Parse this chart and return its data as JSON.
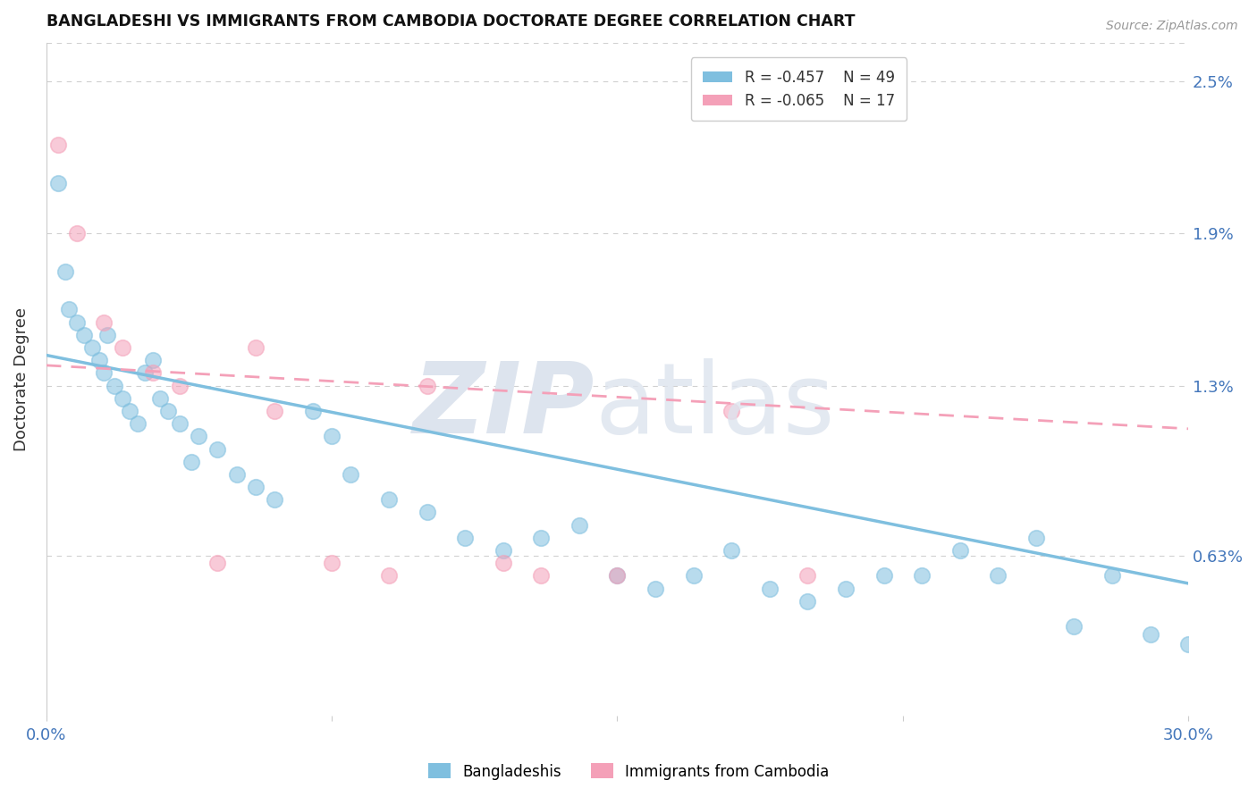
{
  "title": "BANGLADESHI VS IMMIGRANTS FROM CAMBODIA DOCTORATE DEGREE CORRELATION CHART",
  "source": "Source: ZipAtlas.com",
  "ylabel": "Doctorate Degree",
  "xmin": 0.0,
  "xmax": 30.0,
  "ymin": 0.0,
  "ymax": 2.65,
  "ytick_vals": [
    0.63,
    1.3,
    1.9,
    2.5
  ],
  "ytick_labels": [
    "0.63%",
    "1.3%",
    "1.9%",
    "2.5%"
  ],
  "xtick_vals": [
    0.0,
    7.5,
    15.0,
    22.5,
    30.0
  ],
  "xtick_labels": [
    "0.0%",
    "",
    "",
    "",
    "30.0%"
  ],
  "blue_R": "-0.457",
  "blue_N": "49",
  "pink_R": "-0.065",
  "pink_N": "17",
  "blue_color": "#7fbfdf",
  "pink_color": "#f4a0b8",
  "blue_scatter_x": [
    0.3,
    0.5,
    0.6,
    0.8,
    1.0,
    1.2,
    1.4,
    1.5,
    1.6,
    1.8,
    2.0,
    2.2,
    2.4,
    2.6,
    2.8,
    3.0,
    3.2,
    3.5,
    3.8,
    4.0,
    4.5,
    5.0,
    5.5,
    6.0,
    7.0,
    7.5,
    8.0,
    9.0,
    10.0,
    11.0,
    12.0,
    13.0,
    14.0,
    15.0,
    16.0,
    17.0,
    18.0,
    19.0,
    20.0,
    21.0,
    22.0,
    23.0,
    24.0,
    25.0,
    26.0,
    27.0,
    28.0,
    29.0,
    30.0
  ],
  "blue_scatter_y": [
    2.1,
    1.75,
    1.6,
    1.55,
    1.5,
    1.45,
    1.4,
    1.35,
    1.5,
    1.3,
    1.25,
    1.2,
    1.15,
    1.35,
    1.4,
    1.25,
    1.2,
    1.15,
    1.0,
    1.1,
    1.05,
    0.95,
    0.9,
    0.85,
    1.2,
    1.1,
    0.95,
    0.85,
    0.8,
    0.7,
    0.65,
    0.7,
    0.75,
    0.55,
    0.5,
    0.55,
    0.65,
    0.5,
    0.45,
    0.5,
    0.55,
    0.55,
    0.65,
    0.55,
    0.7,
    0.35,
    0.55,
    0.32,
    0.28
  ],
  "pink_scatter_x": [
    0.3,
    0.8,
    1.5,
    2.0,
    2.8,
    3.5,
    4.5,
    5.5,
    6.0,
    7.5,
    9.0,
    10.0,
    12.0,
    13.0,
    15.0,
    18.0,
    20.0
  ],
  "pink_scatter_y": [
    2.25,
    1.9,
    1.55,
    1.45,
    1.35,
    1.3,
    0.6,
    1.45,
    1.2,
    0.6,
    0.55,
    1.3,
    0.6,
    0.55,
    0.55,
    1.2,
    0.55
  ],
  "blue_trendline_x": [
    0.0,
    30.0
  ],
  "blue_trendline_y": [
    1.42,
    0.52
  ],
  "pink_trendline_x": [
    0.0,
    30.0
  ],
  "pink_trendline_y": [
    1.38,
    1.13
  ],
  "grid_color": "#d0d0d0",
  "legend_labels": [
    "Bangladeshis",
    "Immigrants from Cambodia"
  ],
  "background_color": "#ffffff",
  "title_color": "#111111",
  "axis_label_color": "#4477bb",
  "tick_label_color": "#4477bb"
}
